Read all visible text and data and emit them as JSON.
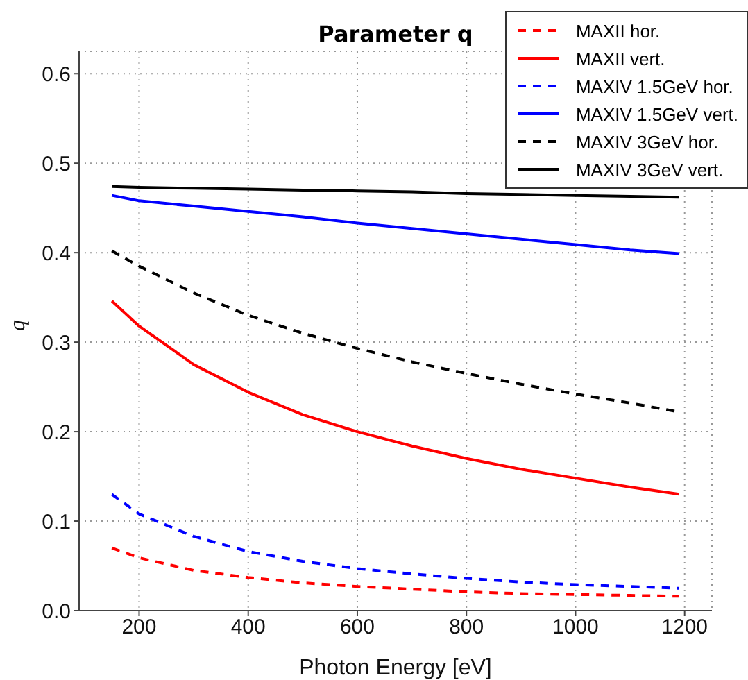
{
  "chart_data": {
    "type": "line",
    "title": "Parameter q",
    "xlabel": "Photon Energy [eV]",
    "ylabel": "q",
    "x": [
      150,
      200,
      300,
      400,
      500,
      600,
      700,
      800,
      900,
      1000,
      1100,
      1190
    ],
    "series": [
      {
        "name": "MAXII hor.",
        "color": "#ff0000",
        "line_style": "dashed",
        "values": [
          0.07,
          0.059,
          0.045,
          0.037,
          0.031,
          0.027,
          0.024,
          0.021,
          0.019,
          0.018,
          0.017,
          0.016
        ]
      },
      {
        "name": "MAXII vert.",
        "color": "#ff0000",
        "line_style": "solid",
        "values": [
          0.346,
          0.318,
          0.275,
          0.244,
          0.219,
          0.2,
          0.184,
          0.17,
          0.158,
          0.148,
          0.138,
          0.13
        ]
      },
      {
        "name": "MAXIV 1.5GeV hor.",
        "color": "#0000ff",
        "line_style": "dashed",
        "values": [
          0.13,
          0.108,
          0.083,
          0.066,
          0.055,
          0.047,
          0.041,
          0.036,
          0.032,
          0.029,
          0.027,
          0.025
        ]
      },
      {
        "name": "MAXIV 1.5GeV vert.",
        "color": "#0000ff",
        "line_style": "solid",
        "values": [
          0.464,
          0.458,
          0.452,
          0.446,
          0.44,
          0.433,
          0.427,
          0.421,
          0.415,
          0.409,
          0.403,
          0.399
        ]
      },
      {
        "name": "MAXIV 3GeV hor.",
        "color": "#000000",
        "line_style": "dashed",
        "values": [
          0.402,
          0.385,
          0.355,
          0.33,
          0.31,
          0.293,
          0.278,
          0.265,
          0.253,
          0.242,
          0.232,
          0.222
        ]
      },
      {
        "name": "MAXIV 3GeV vert.",
        "color": "#000000",
        "line_style": "solid",
        "values": [
          0.474,
          0.473,
          0.472,
          0.471,
          0.47,
          0.469,
          0.468,
          0.466,
          0.465,
          0.464,
          0.463,
          0.462
        ]
      }
    ],
    "xlim": [
      90,
      1250
    ],
    "xticks": [
      200,
      400,
      600,
      800,
      1000,
      1200
    ],
    "ylim": [
      0,
      0.625
    ],
    "yticks": [
      {
        "value": 0,
        "label": "0.0"
      },
      0.1,
      0.2,
      0.3,
      0.4,
      0.5,
      0.6
    ],
    "grid": true,
    "legend": "top right",
    "marker": "none"
  }
}
